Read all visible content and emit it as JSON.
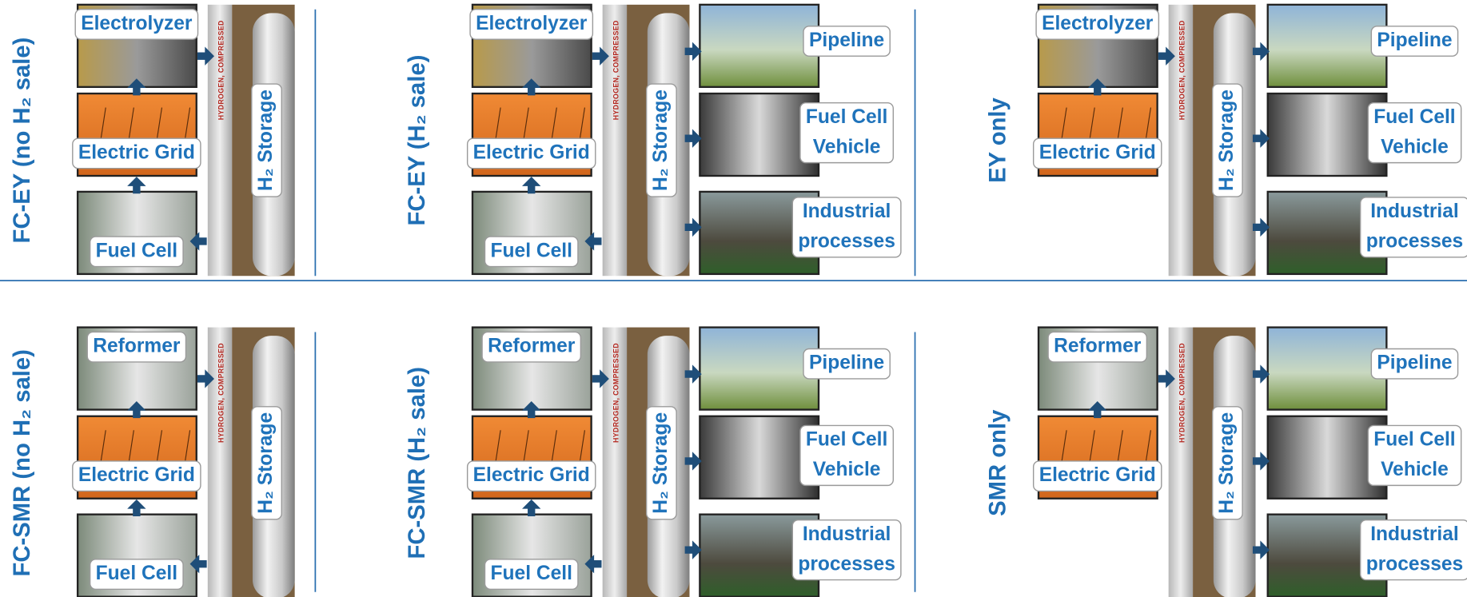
{
  "tank_label": "HYDROGEN, COMPRESSED",
  "panels": [
    {
      "title": "FC-EY (no H₂ sale)",
      "sources": [
        "Electrolyzer",
        "Electric Grid",
        "Fuel Cell"
      ],
      "storage": "H₂ Storage",
      "uses": []
    },
    {
      "title": "FC-EY (H₂ sale)",
      "sources": [
        "Electrolyzer",
        "Electric Grid",
        "Fuel Cell"
      ],
      "storage": "H₂ Storage",
      "uses": [
        [
          "Pipeline"
        ],
        [
          "Fuel Cell",
          "Vehicle"
        ],
        [
          "Industrial",
          "processes"
        ]
      ]
    },
    {
      "title": "EY only",
      "sources": [
        "Electrolyzer",
        "Electric Grid"
      ],
      "storage": "H₂ Storage",
      "uses": [
        [
          "Pipeline"
        ],
        [
          "Fuel Cell",
          "Vehicle"
        ],
        [
          "Industrial",
          "processes"
        ]
      ]
    },
    {
      "title": "FC-SMR (no H₂ sale)",
      "sources": [
        "Reformer",
        "Electric Grid",
        "Fuel Cell"
      ],
      "storage": "H₂ Storage",
      "uses": []
    },
    {
      "title": "FC-SMR (H₂ sale)",
      "sources": [
        "Reformer",
        "Electric Grid",
        "Fuel Cell"
      ],
      "storage": "H₂ Storage",
      "uses": [
        [
          "Pipeline"
        ],
        [
          "Fuel Cell",
          "Vehicle"
        ],
        [
          "Industrial",
          "processes"
        ]
      ]
    },
    {
      "title": "SMR only",
      "sources": [
        "Reformer",
        "Electric Grid"
      ],
      "storage": "H₂ Storage",
      "uses": [
        [
          "Pipeline"
        ],
        [
          "Fuel Cell",
          "Vehicle"
        ],
        [
          "Industrial",
          "processes"
        ]
      ]
    }
  ]
}
